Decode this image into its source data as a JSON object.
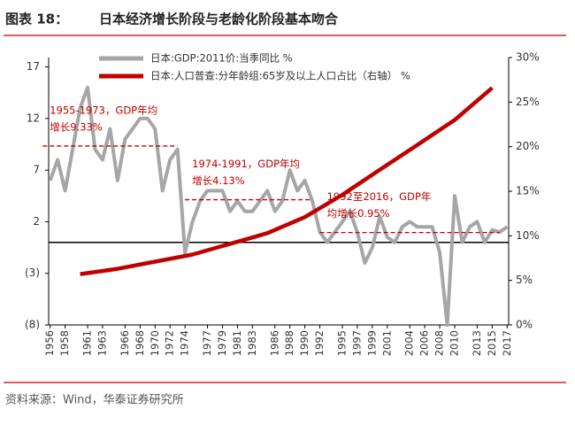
{
  "header": {
    "title": "图表 18：",
    "subtitle": "日本经济增长阶段与老龄化阶段基本吻合"
  },
  "chart_data": {
    "type": "line",
    "xlim": [
      1955.8,
      2017.2
    ],
    "xticks": [
      1956,
      1958,
      1961,
      1963,
      1966,
      1968,
      1970,
      1972,
      1974,
      1977,
      1979,
      1981,
      1983,
      1986,
      1988,
      1990,
      1992,
      1995,
      1997,
      1999,
      2001,
      2004,
      2006,
      2008,
      2010,
      2013,
      2015,
      2017
    ],
    "ylim": [
      -8,
      17.9
    ],
    "yticks": [
      {
        "value": -8,
        "label": "(8)"
      },
      {
        "value": -3,
        "label": "(3)"
      },
      2,
      7,
      12,
      17
    ],
    "y2lim": [
      0,
      30
    ],
    "y2ticks": [
      {
        "value": 0,
        "label": "0%"
      },
      {
        "value": 5,
        "label": "5%"
      },
      {
        "value": 10,
        "label": "10%"
      },
      {
        "value": 15,
        "label": "15%"
      },
      {
        "value": 20,
        "label": "20%"
      },
      {
        "value": 25,
        "label": "25%"
      },
      {
        "value": 30,
        "label": "30%"
      }
    ],
    "series": [
      {
        "name": "日本:GDP:2011价:当季同比 %",
        "color": "#a6a6a6",
        "x": [
          1956,
          1957,
          1958,
          1959,
          1960,
          1961,
          1962,
          1963,
          1964,
          1965,
          1966,
          1967,
          1968,
          1969,
          1970,
          1971,
          1972,
          1973,
          1974,
          1975,
          1976,
          1977,
          1978,
          1979,
          1980,
          1981,
          1982,
          1983,
          1984,
          1985,
          1986,
          1987,
          1988,
          1989,
          1990,
          1991,
          1992,
          1993,
          1994,
          1995,
          1996,
          1997,
          1998,
          1999,
          2000,
          2001,
          2002,
          2003,
          2004,
          2005,
          2006,
          2007,
          2008,
          2009,
          2010,
          2011,
          2012,
          2013,
          2014,
          2015,
          2016,
          2017
        ],
        "values": [
          6,
          8,
          5,
          9,
          13,
          15,
          9,
          8,
          11,
          6,
          10,
          11,
          12,
          12,
          11,
          5,
          8,
          9,
          -1,
          2,
          4,
          5,
          5,
          5,
          3,
          4,
          3,
          3,
          4,
          5,
          3,
          4,
          7,
          5,
          6,
          4,
          1,
          0,
          1,
          2,
          3,
          1,
          -2,
          -0.5,
          2.5,
          0.5,
          0,
          1.5,
          2,
          1.5,
          1.5,
          1.5,
          -1,
          -8,
          4.5,
          0,
          1.5,
          2,
          0,
          1.2,
          1,
          1.5
        ]
      },
      {
        "name": "日本:人口普查:分年龄组:65岁及以上人口占比（右轴） %",
        "color": "#c00000",
        "axis": "y2",
        "x": [
          1960,
          1965,
          1970,
          1975,
          1980,
          1985,
          1990,
          1995,
          2000,
          2005,
          2010,
          2015
        ],
        "values": [
          5.7,
          6.3,
          7.1,
          7.9,
          9.1,
          10.3,
          12.1,
          14.6,
          17.4,
          20.2,
          23.0,
          26.6
        ]
      }
    ],
    "averages": [
      {
        "start": 1955,
        "end": 1973,
        "value": 9.33,
        "label": [
          "1955-1973，GDP年均",
          "增长9.33%"
        ]
      },
      {
        "start": 1974,
        "end": 1991,
        "value": 4.13,
        "label": [
          "1974-1991，GDP年均",
          "增长4.13%"
        ]
      },
      {
        "start": 1992,
        "end": 2016,
        "value": 0.95,
        "label": [
          "1992至2016，GDP年",
          "均增长0.95%"
        ]
      }
    ]
  },
  "footer": {
    "source": "资料来源：Wind，华泰证券研究所"
  }
}
